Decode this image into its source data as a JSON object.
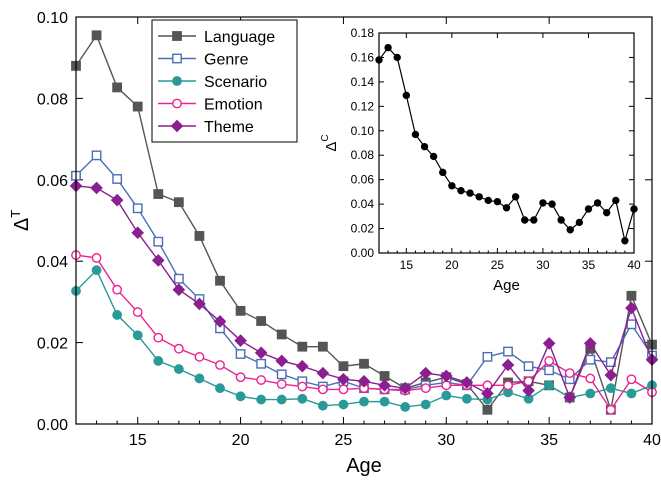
{
  "chart_data": [
    {
      "type": "line",
      "xlabel": "Age",
      "ylabel_main": "Δ",
      "ylabel_sup": "T",
      "xlim": [
        12,
        40
      ],
      "ylim": [
        0,
        0.1
      ],
      "xticks": [
        15,
        20,
        25,
        30,
        35,
        40
      ],
      "yticks": [
        0.0,
        0.02,
        0.04,
        0.06,
        0.08,
        0.1
      ],
      "ytick_labels": [
        "0.00",
        "0.02",
        "0.04",
        "0.06",
        "0.08",
        "0.10"
      ],
      "legend_position": "top-left",
      "grid": false,
      "x": [
        12,
        13,
        14,
        15,
        16,
        17,
        18,
        19,
        20,
        21,
        22,
        23,
        24,
        25,
        26,
        27,
        28,
        29,
        30,
        31,
        32,
        33,
        34,
        35,
        36,
        37,
        38,
        39,
        40
      ],
      "series": [
        {
          "name": "Language",
          "color": "#555555",
          "marker": "square-filled",
          "values": [
            0.088,
            0.0955,
            0.0827,
            0.078,
            0.0565,
            0.0545,
            0.0462,
            0.0352,
            0.0278,
            0.0253,
            0.022,
            0.019,
            0.019,
            0.0142,
            0.0148,
            0.0118,
            0.0088,
            0.0102,
            0.0115,
            0.0098,
            0.0035,
            0.0102,
            0.0105,
            0.0095,
            0.0065,
            0.0185,
            0.0035,
            0.0315,
            0.0195
          ]
        },
        {
          "name": "Genre",
          "color": "#4a6fb5",
          "marker": "square-open",
          "values": [
            0.061,
            0.066,
            0.0602,
            0.053,
            0.0448,
            0.0357,
            0.0307,
            0.0235,
            0.0172,
            0.0148,
            0.0122,
            0.0105,
            0.0092,
            0.0105,
            0.0088,
            0.0085,
            0.0085,
            0.0095,
            0.0102,
            0.0095,
            0.0165,
            0.0178,
            0.0142,
            0.0132,
            0.011,
            0.0158,
            0.0152,
            0.0245,
            0.0168
          ]
        },
        {
          "name": "Scenario",
          "color": "#2a9a98",
          "marker": "circle-filled",
          "values": [
            0.0327,
            0.0378,
            0.0268,
            0.0218,
            0.0155,
            0.0135,
            0.0112,
            0.0088,
            0.0068,
            0.006,
            0.006,
            0.0062,
            0.0045,
            0.0048,
            0.0055,
            0.0055,
            0.0042,
            0.0048,
            0.007,
            0.0062,
            0.006,
            0.0078,
            0.0062,
            0.0095,
            0.0065,
            0.0075,
            0.0088,
            0.0075,
            0.0095
          ]
        },
        {
          "name": "Emotion",
          "color": "#ee2290",
          "marker": "circle-open",
          "values": [
            0.0415,
            0.0408,
            0.033,
            0.0275,
            0.0212,
            0.0185,
            0.0165,
            0.0145,
            0.0115,
            0.0108,
            0.0098,
            0.0092,
            0.0085,
            0.0085,
            0.0088,
            0.0085,
            0.0082,
            0.0088,
            0.0095,
            0.0095,
            0.0095,
            0.0095,
            0.0105,
            0.0155,
            0.0125,
            0.0112,
            0.0035,
            0.011,
            0.0078
          ]
        },
        {
          "name": "Theme",
          "color": "#8a1f8f",
          "marker": "diamond-filled",
          "values": [
            0.0585,
            0.058,
            0.055,
            0.047,
            0.0402,
            0.033,
            0.0295,
            0.0252,
            0.0205,
            0.0175,
            0.0155,
            0.0142,
            0.0125,
            0.011,
            0.0105,
            0.0095,
            0.0088,
            0.0125,
            0.0118,
            0.0102,
            0.0075,
            0.0145,
            0.0082,
            0.0198,
            0.0065,
            0.0198,
            0.012,
            0.0285,
            0.0158
          ]
        }
      ]
    },
    {
      "type": "line",
      "xlabel": "Age",
      "ylabel_main": "Δ",
      "ylabel_sup": "C",
      "xlim": [
        12,
        40
      ],
      "ylim": [
        0,
        0.18
      ],
      "xticks": [
        15,
        20,
        25,
        30,
        35,
        40
      ],
      "yticks": [
        0.0,
        0.02,
        0.04,
        0.06,
        0.08,
        0.1,
        0.12,
        0.14,
        0.16,
        0.18
      ],
      "ytick_labels": [
        "0.00",
        "0.02",
        "0.04",
        "0.06",
        "0.08",
        "0.10",
        "0.12",
        "0.14",
        "0.16",
        "0.18"
      ],
      "grid": false,
      "series": [
        {
          "color": "#000000",
          "marker": "circle-filled",
          "x": [
            12,
            13,
            14,
            15,
            16,
            17,
            18,
            19,
            20,
            21,
            22,
            23,
            24,
            25,
            26,
            27,
            28,
            29,
            30,
            31,
            32,
            33,
            34,
            35,
            36,
            37,
            38,
            39,
            40
          ],
          "values": [
            0.158,
            0.168,
            0.16,
            0.129,
            0.097,
            0.087,
            0.079,
            0.066,
            0.055,
            0.051,
            0.049,
            0.046,
            0.043,
            0.042,
            0.037,
            0.046,
            0.027,
            0.027,
            0.041,
            0.04,
            0.027,
            0.019,
            0.025,
            0.036,
            0.041,
            0.033,
            0.043,
            0.01,
            0.036
          ]
        }
      ]
    }
  ]
}
